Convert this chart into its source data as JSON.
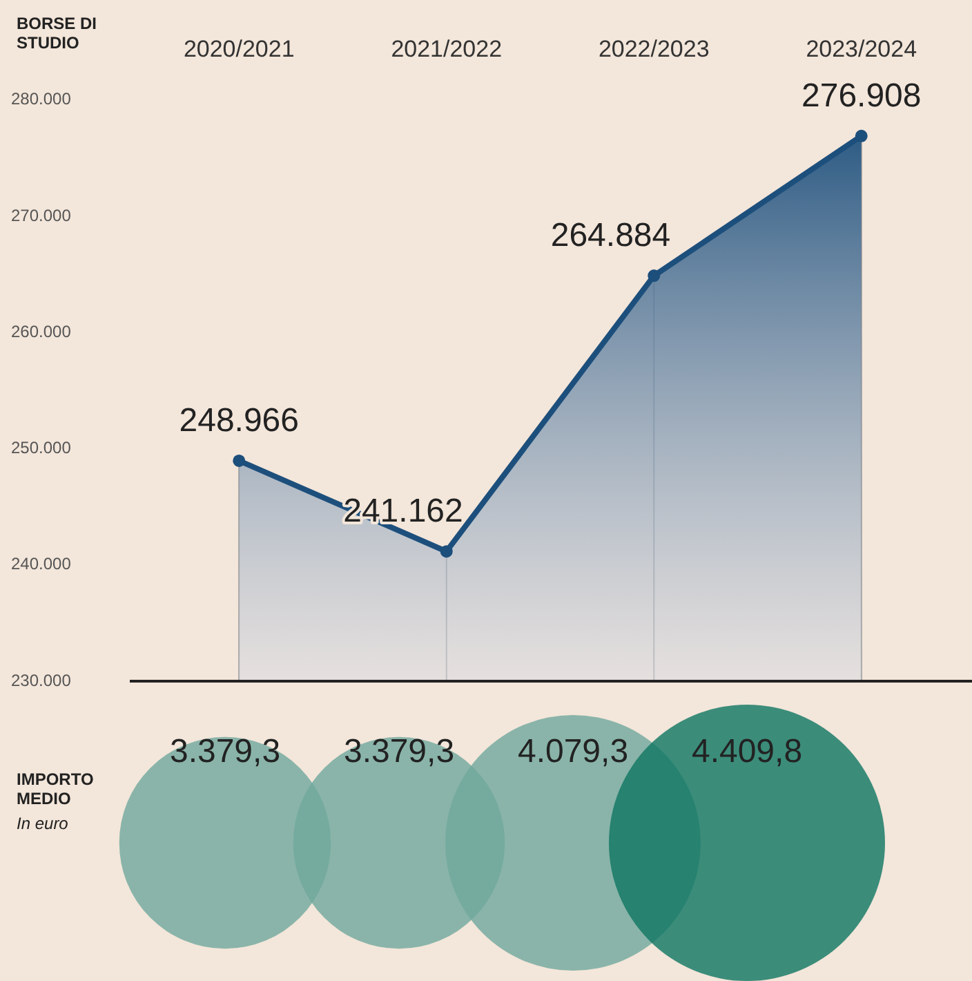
{
  "chart_data": [
    {
      "type": "area",
      "title": "BORSE DI STUDIO",
      "categories": [
        "2020/2021",
        "2021/2022",
        "2022/2023",
        "2023/2024"
      ],
      "series": [
        {
          "color": "#1d4f7c",
          "values": [
            248966,
            241162,
            264884,
            276908
          ],
          "value_labels": [
            "248.966",
            "241.162",
            "264.884",
            "276.908"
          ]
        }
      ],
      "ylim": [
        230000,
        280000
      ],
      "yticks": [
        {
          "value": 230000,
          "label": "230.000"
        },
        {
          "value": 240000,
          "label": "240.000"
        },
        {
          "value": 250000,
          "label": "250.000"
        },
        {
          "value": 260000,
          "label": "260.000"
        },
        {
          "value": 270000,
          "label": "270.000"
        },
        {
          "value": 280000,
          "label": "280.000"
        }
      ],
      "grid": "x",
      "marker": "circle",
      "legend": false
    },
    {
      "type": "other",
      "title": "IMPORTO MEDIO",
      "subtitle": "In euro",
      "categories": [
        null,
        null,
        null,
        null
      ],
      "values": [
        3379.3,
        3379.3,
        4079.3,
        4409.8
      ],
      "value_labels": [
        "3.379,3",
        "3.379,3",
        "4.079,3",
        "4.409,8"
      ],
      "colors": [
        "#6fa89c",
        "#6fa89c",
        "#6fa89c",
        "#0e7562"
      ],
      "legend": false
    }
  ]
}
